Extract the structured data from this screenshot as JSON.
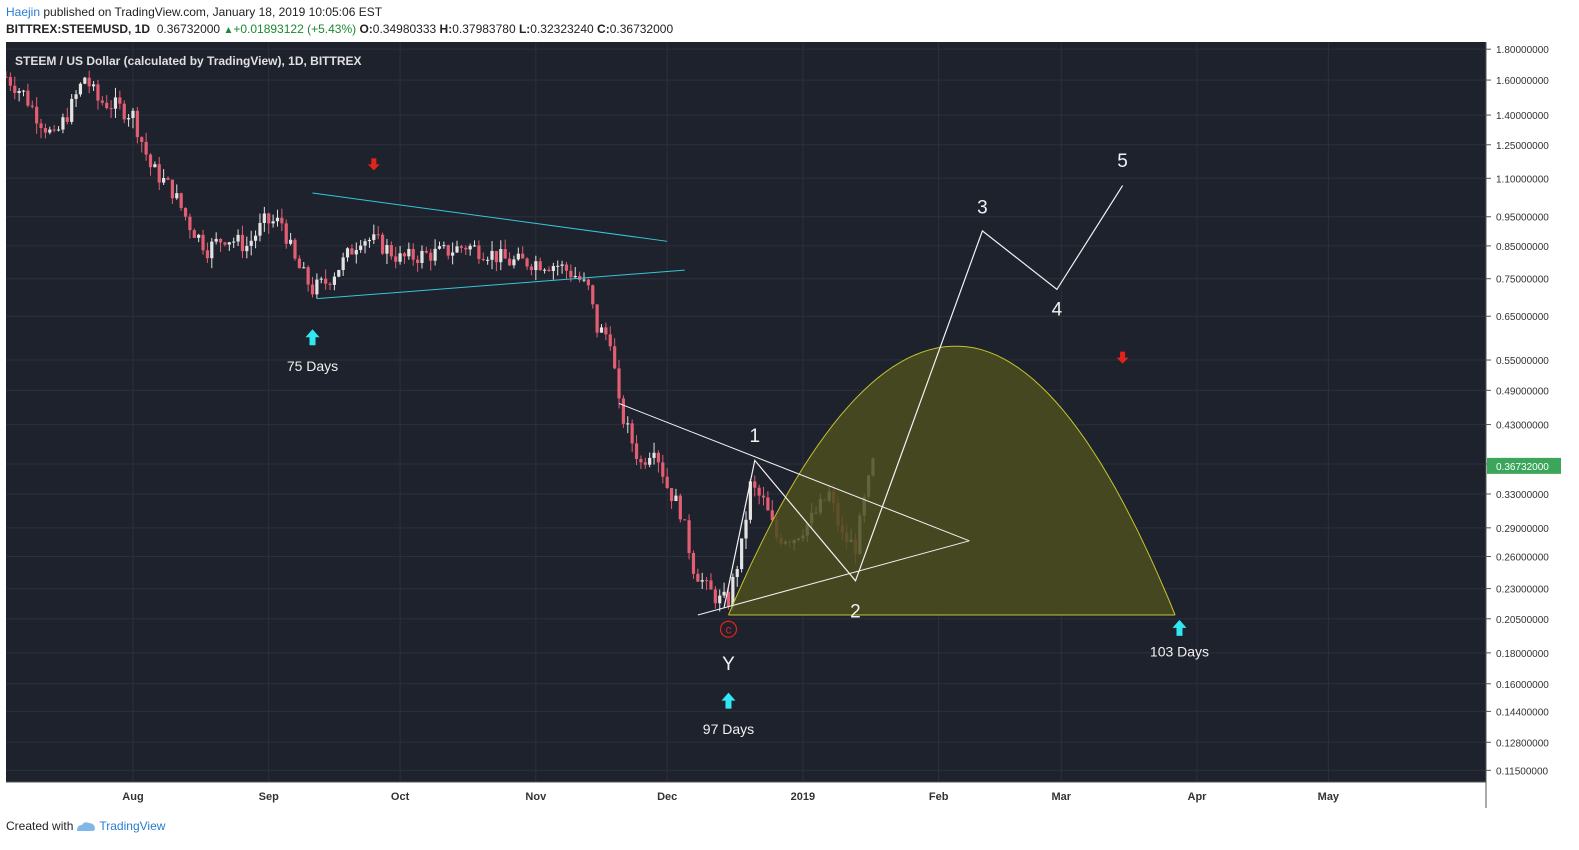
{
  "header": {
    "author": "Haejin",
    "published_text": " published on TradingView.com, January 18, 2019 10:05:06 EST",
    "symbol": "BITTREX:STEEMUSD, 1D",
    "price": "0.36732000",
    "change": "+0.01893122 (+5.43%)",
    "o_label": "O:",
    "o_value": "0.34980333",
    "h_label": "H:",
    "h_value": "0.37983780",
    "l_label": "L:",
    "l_value": "0.32323240",
    "c_label": "C:",
    "c_value": "0.36732000"
  },
  "footer": {
    "created_with": "Created with",
    "brand": "TradingView"
  },
  "colors": {
    "background": "#1e222d",
    "grid": "#2c303b",
    "up_candle": "#e3e3e3",
    "down_candle": "#e35e72",
    "cyan": "#35c7d6",
    "arrow_cyan": "#31e7f2",
    "arrow_red": "#e2231a",
    "wave": "#f2f2f2",
    "arc_fill": "#4b4d1f",
    "arc_stroke": "#c3c431",
    "price_tag": "#3ba55c"
  },
  "chart_data": {
    "type": "candlestick",
    "title": "STEEM / US Dollar (calculated by TradingView), 1D, BITTREX",
    "y_scale": "log",
    "ylim": [
      0.11,
      1.85
    ],
    "y_ticks": [
      1.8,
      1.6,
      1.4,
      1.25,
      1.1,
      0.95,
      0.85,
      0.75,
      0.65,
      0.55,
      0.49,
      0.43,
      0.37,
      0.33,
      0.29,
      0.26,
      0.23,
      0.205,
      0.18,
      0.16,
      0.144,
      0.128,
      0.115
    ],
    "y_tick_labels": [
      "1.80000000",
      "1.60000000",
      "1.40000000",
      "1.25000000",
      "1.10000000",
      "0.95000000",
      "0.85000000",
      "0.75000000",
      "0.65000000",
      "0.55000000",
      "0.49000000",
      "0.43000000",
      "",
      "0.33000000",
      "0.29000000",
      "0.26000000",
      "0.23000000",
      "0.20500000",
      "0.18000000",
      "0.16000000",
      "0.14400000",
      "0.12800000",
      "0.11500000"
    ],
    "current_price_label": "0.36732000",
    "current_price": 0.36732,
    "x_range": [
      "2018-07-03",
      "2019-06-06"
    ],
    "x_ticks": [
      {
        "date": "2018-08-01",
        "label": "Aug"
      },
      {
        "date": "2018-09-01",
        "label": "Sep"
      },
      {
        "date": "2018-10-01",
        "label": "Oct"
      },
      {
        "date": "2018-11-01",
        "label": "Nov"
      },
      {
        "date": "2018-12-01",
        "label": "Dec"
      },
      {
        "date": "2019-01-01",
        "label": "2019"
      },
      {
        "date": "2019-02-01",
        "label": "Feb"
      },
      {
        "date": "2019-03-01",
        "label": "Mar"
      },
      {
        "date": "2019-04-01",
        "label": "Apr"
      },
      {
        "date": "2019-05-01",
        "label": "May"
      }
    ],
    "price_anchors": [
      [
        "2018-07-03",
        1.62
      ],
      [
        "2018-07-07",
        1.52
      ],
      [
        "2018-07-10",
        1.4
      ],
      [
        "2018-07-14",
        1.28
      ],
      [
        "2018-07-18",
        1.45
      ],
      [
        "2018-07-21",
        1.62
      ],
      [
        "2018-07-24",
        1.48
      ],
      [
        "2018-07-28",
        1.45
      ],
      [
        "2018-08-01",
        1.4
      ],
      [
        "2018-08-05",
        1.15
      ],
      [
        "2018-08-10",
        1.05
      ],
      [
        "2018-08-14",
        0.92
      ],
      [
        "2018-08-18",
        0.84
      ],
      [
        "2018-08-22",
        0.88
      ],
      [
        "2018-08-27",
        0.85
      ],
      [
        "2018-08-31",
        0.93
      ],
      [
        "2018-09-04",
        0.93
      ],
      [
        "2018-09-07",
        0.8
      ],
      [
        "2018-09-11",
        0.72
      ],
      [
        "2018-09-14",
        0.74
      ],
      [
        "2018-09-18",
        0.8
      ],
      [
        "2018-09-22",
        0.88
      ],
      [
        "2018-09-26",
        0.86
      ],
      [
        "2018-10-01",
        0.81
      ],
      [
        "2018-10-06",
        0.82
      ],
      [
        "2018-10-11",
        0.83
      ],
      [
        "2018-10-16",
        0.85
      ],
      [
        "2018-10-21",
        0.83
      ],
      [
        "2018-10-26",
        0.8
      ],
      [
        "2018-11-01",
        0.8
      ],
      [
        "2018-11-06",
        0.79
      ],
      [
        "2018-11-10",
        0.76
      ],
      [
        "2018-11-13",
        0.72
      ],
      [
        "2018-11-15",
        0.62
      ],
      [
        "2018-11-18",
        0.6
      ],
      [
        "2018-11-20",
        0.46
      ],
      [
        "2018-11-22",
        0.42
      ],
      [
        "2018-11-25",
        0.37
      ],
      [
        "2018-11-28",
        0.4
      ],
      [
        "2018-12-01",
        0.34
      ],
      [
        "2018-12-04",
        0.31
      ],
      [
        "2018-12-07",
        0.25
      ],
      [
        "2018-12-10",
        0.23
      ],
      [
        "2018-12-13",
        0.22
      ],
      [
        "2018-12-15",
        0.22
      ],
      [
        "2018-12-18",
        0.27
      ],
      [
        "2018-12-20",
        0.34
      ],
      [
        "2018-12-23",
        0.32
      ],
      [
        "2018-12-26",
        0.28
      ],
      [
        "2018-12-30",
        0.28
      ],
      [
        "2019-01-03",
        0.3
      ],
      [
        "2019-01-07",
        0.33
      ],
      [
        "2019-01-10",
        0.28
      ],
      [
        "2019-01-13",
        0.27
      ],
      [
        "2019-01-15",
        0.32
      ],
      [
        "2019-01-17",
        0.37
      ]
    ],
    "trend_lines": [
      {
        "color": "cyan",
        "from": [
          "2018-09-11",
          1.04
        ],
        "to": [
          "2018-12-01",
          0.865
        ]
      },
      {
        "color": "cyan",
        "from": [
          "2018-09-12",
          0.695
        ],
        "to": [
          "2018-12-05",
          0.775
        ]
      },
      {
        "color": "white",
        "from": [
          "2018-11-20",
          0.466
        ],
        "to": [
          "2019-02-08",
          0.276
        ]
      },
      {
        "color": "white",
        "from": [
          "2018-12-08",
          0.208
        ],
        "to": [
          "2019-02-08",
          0.276
        ]
      }
    ],
    "wave_path": [
      [
        "2018-12-14",
        0.214
      ],
      [
        "2018-12-21",
        0.375
      ],
      [
        "2019-01-13",
        0.237
      ],
      [
        "2019-02-11",
        0.9
      ],
      [
        "2019-02-28",
        0.72
      ],
      [
        "2019-03-15",
        1.07
      ]
    ],
    "wave_labels": [
      {
        "text": "1",
        "date": "2018-12-21",
        "price": 0.41
      },
      {
        "text": "2",
        "date": "2019-01-13",
        "price": 0.21
      },
      {
        "text": "3",
        "date": "2019-02-11",
        "price": 0.98
      },
      {
        "text": "4",
        "date": "2019-02-28",
        "price": 0.665
      },
      {
        "text": "5",
        "date": "2019-03-15",
        "price": 1.17
      },
      {
        "text": "Y",
        "date": "2018-12-15",
        "price": 0.172
      }
    ],
    "c_marker": {
      "text": "c",
      "date": "2018-12-15",
      "price": 0.197
    },
    "arc": {
      "start": "2018-12-15",
      "end": "2019-03-27",
      "base": 0.208,
      "peak": 0.58,
      "peak_date": "2019-02-05"
    },
    "cycle_arrows": [
      {
        "date": "2018-09-11",
        "price": 0.6,
        "label": "75 Days",
        "label_price": 0.535
      },
      {
        "date": "2018-12-15",
        "price": 0.15,
        "label": "97 Days",
        "label_price": 0.134
      },
      {
        "date": "2019-03-28",
        "price": 0.198,
        "label": "103 Days",
        "label_price": 0.18
      }
    ],
    "down_arrows": [
      {
        "date": "2018-09-25",
        "price": 1.16
      },
      {
        "date": "2019-03-15",
        "price": 0.555
      }
    ]
  }
}
